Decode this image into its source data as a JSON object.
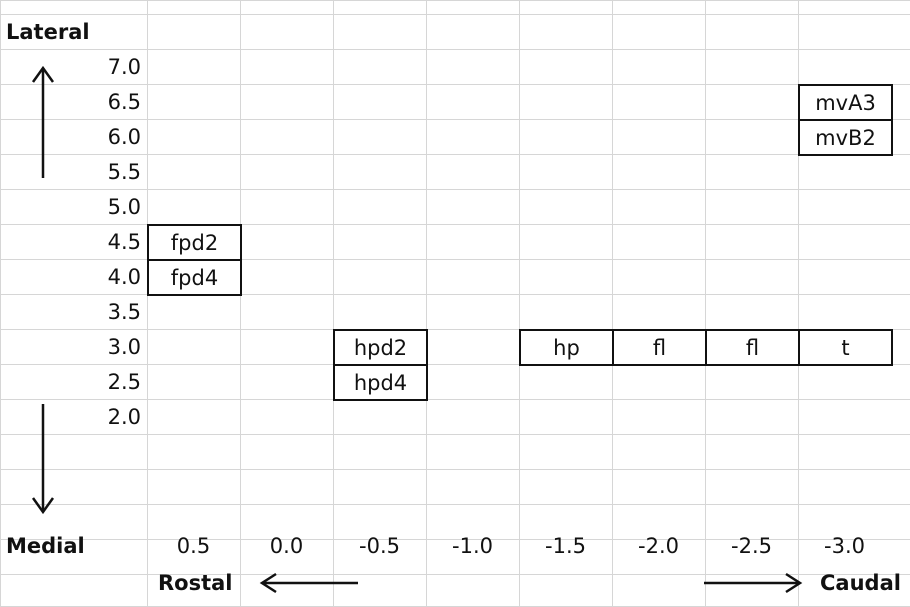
{
  "axes": {
    "lateral_label": "Lateral",
    "medial_label": "Medial",
    "rostral_label": "Rostal",
    "caudal_label": "Caudal"
  },
  "rows": [
    "7.0",
    "6.5",
    "6.0",
    "5.5",
    "5.0",
    "4.5",
    "4.0",
    "3.5",
    "3.0",
    "2.5",
    "2.0"
  ],
  "columns": [
    "0.5",
    "0.0",
    "-0.5",
    "-1.0",
    "-1.5",
    "-2.0",
    "-2.5",
    "-3.0"
  ],
  "boxes": [
    {
      "label": "mvA3",
      "col": "-3.0",
      "row": "6.5"
    },
    {
      "label": "mvB2",
      "col": "-3.0",
      "row": "6.0"
    },
    {
      "label": "fpd2",
      "col": "0.5",
      "row": "4.5"
    },
    {
      "label": "fpd4",
      "col": "0.5",
      "row": "4.0"
    },
    {
      "label": "hpd2",
      "col": "-0.5",
      "row": "3.0"
    },
    {
      "label": "hpd4",
      "col": "-0.5",
      "row": "2.5"
    },
    {
      "label": "hp",
      "col": "-1.5",
      "row": "3.0"
    },
    {
      "label": "fl",
      "col": "-2.0",
      "row": "3.0"
    },
    {
      "label": "fl",
      "col": "-2.5",
      "row": "3.0"
    },
    {
      "label": "t",
      "col": "-3.0",
      "row": "3.0"
    }
  ],
  "line_color": "#111111",
  "grid_color": "#d6d6d6"
}
